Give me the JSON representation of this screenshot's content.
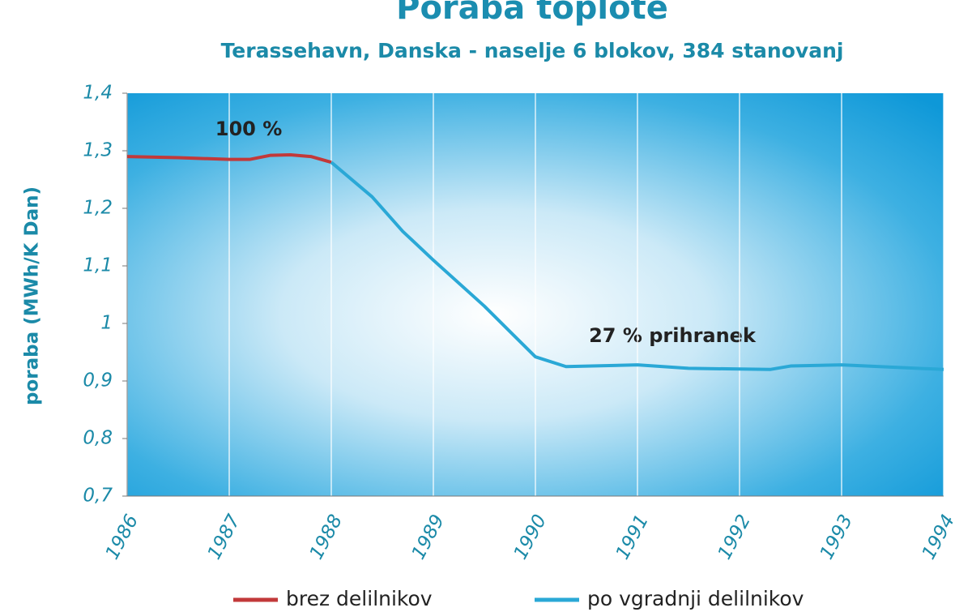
{
  "chart_data": {
    "type": "line",
    "title": "Poraba toplote",
    "subtitle": "Terassehavn, Danska - naselje 6 blokov, 384 stanovanj",
    "y_label": "poraba (MWh/K Dan)",
    "annotations": [
      "100 %",
      "27 % prihranek"
    ],
    "series": [
      {
        "name": "brez delilnikov",
        "color": "#c2393a",
        "x": [
          1986,
          1986.5,
          1987,
          1987.2,
          1987.4,
          1987.6,
          1987.8,
          1988
        ],
        "values": [
          1.29,
          1.288,
          1.285,
          1.285,
          1.292,
          1.293,
          1.29,
          1.28
        ]
      },
      {
        "name": "po vgradnji delilnikov",
        "color": "#2aa8d6",
        "x": [
          1988,
          1988.4,
          1988.7,
          1989,
          1989.5,
          1990,
          1990.3,
          1991,
          1991.5,
          1992.3,
          1992.5,
          1993,
          1994
        ],
        "values": [
          1.28,
          1.22,
          1.16,
          1.11,
          1.03,
          0.942,
          0.925,
          0.928,
          0.922,
          0.92,
          0.926,
          0.928,
          0.92
        ]
      }
    ],
    "xlim": [
      1986,
      1994
    ],
    "xticks": [
      1986,
      1987,
      1988,
      1989,
      1990,
      1991,
      1992,
      1993,
      1994
    ],
    "ylim": [
      0.7,
      1.4
    ],
    "yticks": [
      {
        "value": 0.7,
        "label": "0,7"
      },
      {
        "value": 0.8,
        "label": "0,8"
      },
      {
        "value": 0.9,
        "label": "0,9"
      },
      1,
      {
        "value": 1.1,
        "label": "1,1"
      },
      {
        "value": 1.2,
        "label": "1,2"
      },
      {
        "value": 1.3,
        "label": "1,3"
      },
      {
        "value": 1.4,
        "label": "1,4"
      }
    ],
    "grid": true,
    "legend": "bottom"
  }
}
